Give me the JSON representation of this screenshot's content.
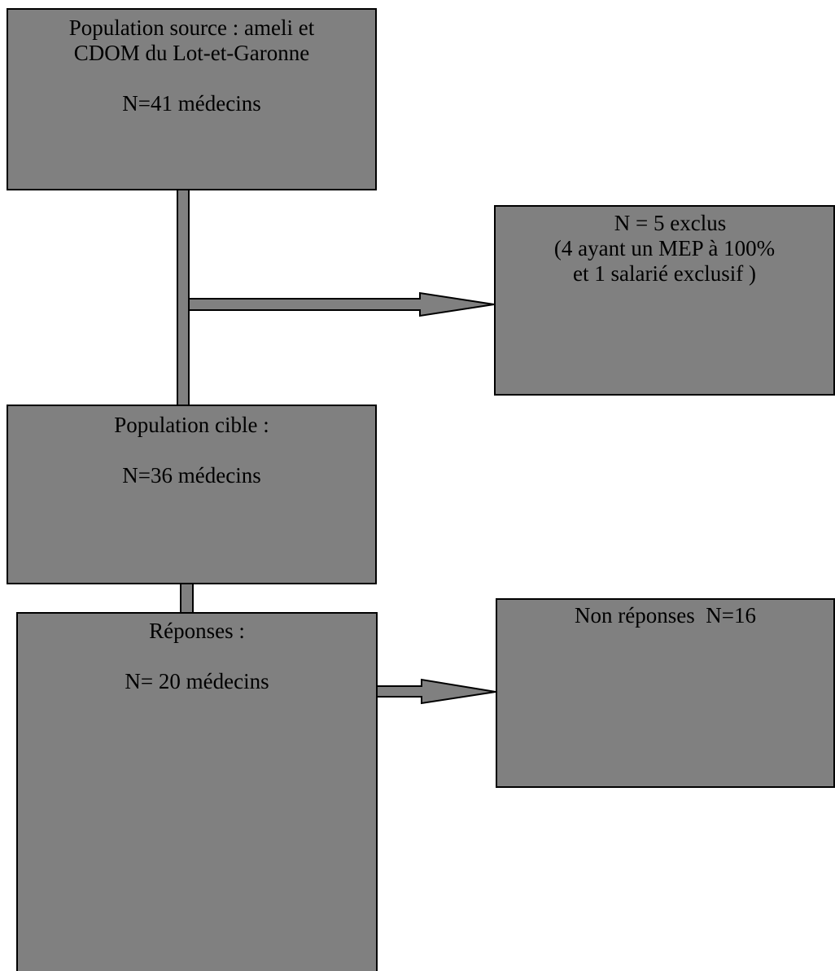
{
  "diagram": {
    "colors": {
      "box_fill": "#808080",
      "stroke": "#000000",
      "background": "#ffffff"
    },
    "boxes": {
      "source": {
        "lines": [
          "Population source : ameli et",
          "CDOM du Lot-et-Garonne"
        ],
        "count": "N=41 médecins"
      },
      "exclus": {
        "lines": [
          "N = 5 exclus",
          "(4 ayant un MEP à 100%",
          "et 1 salarié exclusif )"
        ]
      },
      "cible": {
        "title": "Population cible :",
        "count": "N=36 médecins"
      },
      "non_reponses": {
        "title": "Non réponses  N=16"
      },
      "reponses": {
        "title": "Réponses :",
        "count": "N= 20 médecins"
      }
    }
  }
}
